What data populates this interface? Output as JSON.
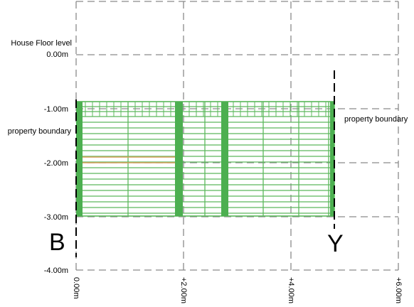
{
  "diagram": {
    "floor_level": {
      "title": "House Floor level",
      "value": "0.00m"
    },
    "y_axis": {
      "labels": [
        "-1.00m",
        "-2.00m",
        "-3.00m",
        "-4.00m"
      ]
    },
    "x_axis": {
      "labels": [
        "0.00m",
        "+2.00m",
        "+4.00m",
        "+6.00m"
      ]
    },
    "boundary_labels": {
      "left": "property boundary",
      "right": "property boundary"
    },
    "markers": {
      "start": "B",
      "end": "Y"
    },
    "colors": {
      "fence_green": "#5cb85c",
      "post_green": "#4caf50",
      "bracing_orange": "#d9a05b",
      "grid_gray": "#8a8a8a"
    }
  }
}
